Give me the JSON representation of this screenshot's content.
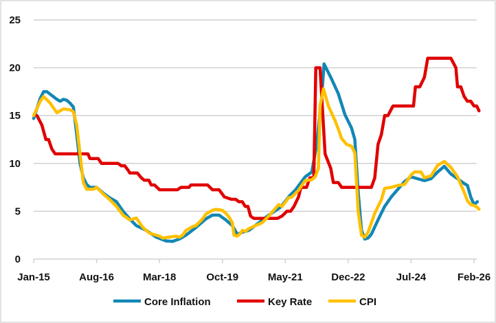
{
  "chart_data": {
    "type": "line",
    "title": "",
    "xlabel": "",
    "ylabel": "",
    "x_unit": "months since Jan-15",
    "xlim": [
      0,
      134
    ],
    "ylim": [
      0,
      25
    ],
    "yticks": [
      0,
      5,
      10,
      15,
      20,
      25
    ],
    "xticks": [
      {
        "m": 0,
        "label": "Jan-15"
      },
      {
        "m": 19,
        "label": "Aug-16"
      },
      {
        "m": 38,
        "label": "Mar-18"
      },
      {
        "m": 57,
        "label": "Oct-19"
      },
      {
        "m": 76,
        "label": "May-21"
      },
      {
        "m": 95,
        "label": "Dec-22"
      },
      {
        "m": 114,
        "label": "Jul-24"
      },
      {
        "m": 133,
        "label": "Feb-26"
      }
    ],
    "grid": "horizontal",
    "legend": "bottom",
    "series": [
      {
        "name": "Core Inflation",
        "color": "#1287B5",
        "points": [
          [
            0,
            14.7
          ],
          [
            2,
            16.8
          ],
          [
            3,
            17.5
          ],
          [
            4,
            17.5
          ],
          [
            7,
            16.7
          ],
          [
            8,
            16.5
          ],
          [
            9,
            16.7
          ],
          [
            10,
            16.6
          ],
          [
            11,
            16.3
          ],
          [
            12,
            15.9
          ],
          [
            13,
            13
          ],
          [
            14,
            10
          ],
          [
            15,
            8.5
          ],
          [
            16,
            7.8
          ],
          [
            17,
            7.5
          ],
          [
            19,
            7.5
          ],
          [
            21,
            6.9
          ],
          [
            23,
            6.4
          ],
          [
            25,
            6
          ],
          [
            27,
            5
          ],
          [
            29,
            4.2
          ],
          [
            31,
            3.5
          ],
          [
            34,
            3
          ],
          [
            37,
            2.3
          ],
          [
            40,
            1.9
          ],
          [
            42,
            1.85
          ],
          [
            44,
            2.1
          ],
          [
            46,
            2.5
          ],
          [
            49,
            3.3
          ],
          [
            52,
            4.2
          ],
          [
            54,
            4.6
          ],
          [
            56,
            4.6
          ],
          [
            58,
            4.1
          ],
          [
            60,
            3.5
          ],
          [
            61.5,
            2.6
          ],
          [
            63,
            2.8
          ],
          [
            65,
            3.0
          ],
          [
            68,
            3.8
          ],
          [
            71,
            4.6
          ],
          [
            74.5,
            5.4
          ],
          [
            77.5,
            6.7
          ],
          [
            79,
            7.2
          ],
          [
            82,
            8.6
          ],
          [
            84,
            9.1
          ],
          [
            85.5,
            12
          ],
          [
            87,
            17
          ],
          [
            87.7,
            20.4
          ],
          [
            90,
            18.8
          ],
          [
            92,
            17.3
          ],
          [
            94,
            15.1
          ],
          [
            96,
            13.7
          ],
          [
            97,
            12.5
          ],
          [
            98,
            7
          ],
          [
            99,
            3
          ],
          [
            100,
            2.1
          ],
          [
            101,
            2.2
          ],
          [
            102,
            2.6
          ],
          [
            104,
            4.1
          ],
          [
            106,
            5.5
          ],
          [
            108,
            6.5
          ],
          [
            110,
            7.3
          ],
          [
            112,
            8.1
          ],
          [
            114,
            8.6
          ],
          [
            116,
            8.4
          ],
          [
            118,
            8.2
          ],
          [
            120,
            8.4
          ],
          [
            122,
            9.1
          ],
          [
            124,
            9.7
          ],
          [
            126,
            8.9
          ],
          [
            128,
            8.4
          ],
          [
            130,
            7.9
          ],
          [
            131,
            7.7
          ],
          [
            132,
            6.5
          ],
          [
            133,
            5.7
          ],
          [
            134,
            6.0
          ]
        ]
      },
      {
        "name": "Key Rate",
        "color": "#E00000",
        "points": [
          [
            1,
            15
          ],
          [
            2.5,
            14
          ],
          [
            3.7,
            12.5
          ],
          [
            4.5,
            12.5
          ],
          [
            5.5,
            11.5
          ],
          [
            6.5,
            11
          ],
          [
            16.4,
            11
          ],
          [
            17,
            10.5
          ],
          [
            19.5,
            10.5
          ],
          [
            20.5,
            10
          ],
          [
            25.5,
            10
          ],
          [
            26.5,
            9.75
          ],
          [
            27.5,
            9.75
          ],
          [
            28.6,
            9.25
          ],
          [
            29,
            9
          ],
          [
            31.3,
            9
          ],
          [
            32.5,
            8.5
          ],
          [
            33.4,
            8.25
          ],
          [
            34.8,
            8.25
          ],
          [
            35.5,
            7.75
          ],
          [
            36.5,
            7.75
          ],
          [
            38,
            7.25
          ],
          [
            43.4,
            7.25
          ],
          [
            44.5,
            7.5
          ],
          [
            46.9,
            7.5
          ],
          [
            47.5,
            7.75
          ],
          [
            52.5,
            7.75
          ],
          [
            54,
            7.25
          ],
          [
            56,
            7.25
          ],
          [
            57.6,
            6.5
          ],
          [
            59.7,
            6.25
          ],
          [
            61,
            6.25
          ],
          [
            62,
            6
          ],
          [
            63,
            6
          ],
          [
            63.9,
            5.5
          ],
          [
            64.7,
            5.5
          ],
          [
            65.5,
            4.5
          ],
          [
            66.5,
            4.25
          ],
          [
            73.6,
            4.25
          ],
          [
            75,
            4.5
          ],
          [
            76.5,
            5
          ],
          [
            77.6,
            5
          ],
          [
            78.6,
            5.5
          ],
          [
            80,
            6.5
          ],
          [
            80.7,
            7.5
          ],
          [
            82.4,
            7.5
          ],
          [
            83.4,
            8.5
          ],
          [
            84.6,
            8.5
          ],
          [
            85.2,
            20
          ],
          [
            86.5,
            20
          ],
          [
            88,
            11
          ],
          [
            89.7,
            9.5
          ],
          [
            90.5,
            8
          ],
          [
            92,
            8
          ],
          [
            93,
            7.5
          ],
          [
            102,
            7.5
          ],
          [
            103,
            8.5
          ],
          [
            104,
            12
          ],
          [
            105,
            13
          ],
          [
            106,
            15
          ],
          [
            107,
            15
          ],
          [
            108.5,
            16
          ],
          [
            114.7,
            16
          ],
          [
            115.3,
            18
          ],
          [
            116.6,
            18
          ],
          [
            118,
            19
          ],
          [
            119,
            21
          ],
          [
            126,
            21
          ],
          [
            127.5,
            20
          ],
          [
            128,
            18
          ],
          [
            129,
            18
          ],
          [
            130,
            17
          ],
          [
            131,
            16.5
          ],
          [
            132,
            16.5
          ],
          [
            133,
            16
          ],
          [
            133.8,
            16
          ],
          [
            134.5,
            15.5
          ]
        ]
      },
      {
        "name": "CPI",
        "color": "#FFC000",
        "points": [
          [
            0,
            15
          ],
          [
            2,
            16.5
          ],
          [
            3,
            17
          ],
          [
            5,
            16.3
          ],
          [
            7,
            15.3
          ],
          [
            8,
            15.5
          ],
          [
            9,
            15.7
          ],
          [
            11,
            15.6
          ],
          [
            12,
            15.4
          ],
          [
            13,
            14
          ],
          [
            14,
            11
          ],
          [
            15,
            8
          ],
          [
            16,
            7.3
          ],
          [
            18,
            7.3
          ],
          [
            19,
            7.5
          ],
          [
            21,
            6.8
          ],
          [
            23,
            6.2
          ],
          [
            25,
            5.5
          ],
          [
            27,
            4.6
          ],
          [
            29,
            4.1
          ],
          [
            30,
            4.2
          ],
          [
            31,
            4.3
          ],
          [
            33,
            3.3
          ],
          [
            35,
            2.7
          ],
          [
            37,
            2.5
          ],
          [
            38,
            2.4
          ],
          [
            39,
            2.2
          ],
          [
            41,
            2.3
          ],
          [
            43,
            2.4
          ],
          [
            44,
            2.3
          ],
          [
            45,
            2.5
          ],
          [
            46,
            3.0
          ],
          [
            48,
            3.4
          ],
          [
            49,
            3.5
          ],
          [
            51,
            4.2
          ],
          [
            52,
            4.7
          ],
          [
            54,
            5.1
          ],
          [
            55,
            5.2
          ],
          [
            57,
            5.1
          ],
          [
            58,
            4.8
          ],
          [
            59,
            4.4
          ],
          [
            60,
            3.8
          ],
          [
            60.5,
            2.5
          ],
          [
            61.5,
            2.4
          ],
          [
            62.5,
            2.7
          ],
          [
            63,
            3.0
          ],
          [
            64,
            2.9
          ],
          [
            65,
            3.2
          ],
          [
            67,
            3.5
          ],
          [
            69,
            3.8
          ],
          [
            71,
            4.5
          ],
          [
            73,
            5.3
          ],
          [
            74,
            5.7
          ],
          [
            75,
            5.5
          ],
          [
            77,
            6.4
          ],
          [
            78,
            6.5
          ],
          [
            80,
            7.2
          ],
          [
            82,
            8.2
          ],
          [
            84,
            8.3
          ],
          [
            85,
            8.6
          ],
          [
            86,
            9.5
          ],
          [
            86.5,
            16
          ],
          [
            87.5,
            17.8
          ],
          [
            89,
            16
          ],
          [
            91,
            14.5
          ],
          [
            92,
            13.6
          ],
          [
            93,
            12.6
          ],
          [
            94.5,
            12
          ],
          [
            96,
            11.8
          ],
          [
            97,
            11.1
          ],
          [
            98,
            5
          ],
          [
            99,
            2.5
          ],
          [
            100,
            2.3
          ],
          [
            101,
            2.8
          ],
          [
            103,
            4.8
          ],
          [
            105,
            6.2
          ],
          [
            106,
            7.4
          ],
          [
            108,
            7.5
          ],
          [
            110,
            7.7
          ],
          [
            112,
            7.8
          ],
          [
            113,
            8.3
          ],
          [
            114,
            8.8
          ],
          [
            115,
            9.1
          ],
          [
            117,
            9.1
          ],
          [
            118,
            8.5
          ],
          [
            120,
            8.7
          ],
          [
            122,
            9.8
          ],
          [
            124,
            10.2
          ],
          [
            126,
            9.6
          ],
          [
            128,
            8.6
          ],
          [
            130,
            7.0
          ],
          [
            131,
            6.1
          ],
          [
            132,
            5.7
          ],
          [
            133,
            5.6
          ],
          [
            134,
            5.4
          ],
          [
            134.5,
            5.2
          ]
        ]
      }
    ]
  }
}
